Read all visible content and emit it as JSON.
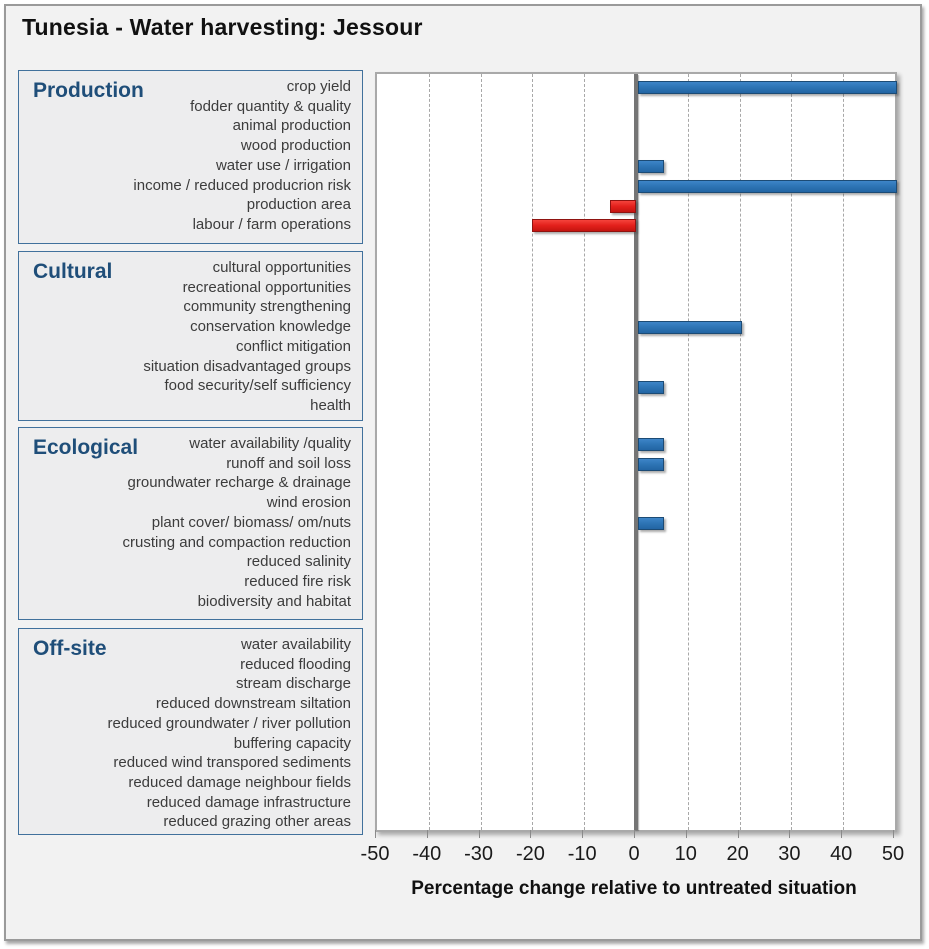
{
  "chart_data": {
    "type": "bar",
    "orientation": "horizontal",
    "title": "Tunesia - Water harvesting: Jessour",
    "xlabel": "Percentage change relative to untreated situation",
    "xlim": [
      -50,
      50
    ],
    "xticks": [
      -50,
      -40,
      -30,
      -20,
      -10,
      0,
      10,
      20,
      30,
      40,
      50
    ],
    "grid": "dashed-vertical-gridlines",
    "legend": "none",
    "positive_color": "#2E75B6",
    "negative_color": "#E3201B",
    "category_title_color": "#1F4E79",
    "groups": [
      {
        "label": "Production",
        "items": [
          {
            "label": "crop yield",
            "value": 50
          },
          {
            "label": "fodder quantity & quality",
            "value": 0
          },
          {
            "label": "animal production",
            "value": 0
          },
          {
            "label": "wood production",
            "value": 0
          },
          {
            "label": "water use / irrigation",
            "value": 5
          },
          {
            "label": "income / reduced producrion risk",
            "value": 50
          },
          {
            "label": "production area",
            "value": -5
          },
          {
            "label": "labour / farm operations",
            "value": -20
          }
        ]
      },
      {
        "label": "Cultural",
        "items": [
          {
            "label": "cultural opportunities",
            "value": 0
          },
          {
            "label": "recreational opportunities",
            "value": 0
          },
          {
            "label": "community strengthening",
            "value": 0
          },
          {
            "label": "conservation knowledge",
            "value": 20
          },
          {
            "label": "conflict mitigation",
            "value": 0
          },
          {
            "label": "situation disadvantaged groups",
            "value": 0
          },
          {
            "label": "food security/self sufficiency",
            "value": 5
          },
          {
            "label": "health",
            "value": 0
          }
        ]
      },
      {
        "label": "Ecological",
        "items": [
          {
            "label": "water availability /quality",
            "value": 5
          },
          {
            "label": "runoff and soil loss",
            "value": 5
          },
          {
            "label": "groundwater recharge & drainage",
            "value": 0
          },
          {
            "label": "wind erosion",
            "value": 0
          },
          {
            "label": "plant cover/ biomass/ om/nuts",
            "value": 5
          },
          {
            "label": "crusting and compaction reduction",
            "value": 0
          },
          {
            "label": "reduced salinity",
            "value": 0
          },
          {
            "label": "reduced fire risk",
            "value": 0
          },
          {
            "label": "biodiversity and habitat",
            "value": 0
          }
        ]
      },
      {
        "label": "Off-site",
        "items": [
          {
            "label": "water availability",
            "value": 0
          },
          {
            "label": "reduced flooding",
            "value": 0
          },
          {
            "label": "stream discharge",
            "value": 0
          },
          {
            "label": "reduced downstream siltation",
            "value": 0
          },
          {
            "label": "reduced groundwater / river pollution",
            "value": 0
          },
          {
            "label": "buffering capacity",
            "value": 0
          },
          {
            "label": "reduced wind transpored sediments",
            "value": 0
          },
          {
            "label": "reduced damage neighbour fields",
            "value": 0
          },
          {
            "label": "reduced damage infrastructure",
            "value": 0
          },
          {
            "label": "reduced grazing other areas",
            "value": 0
          }
        ]
      }
    ]
  }
}
